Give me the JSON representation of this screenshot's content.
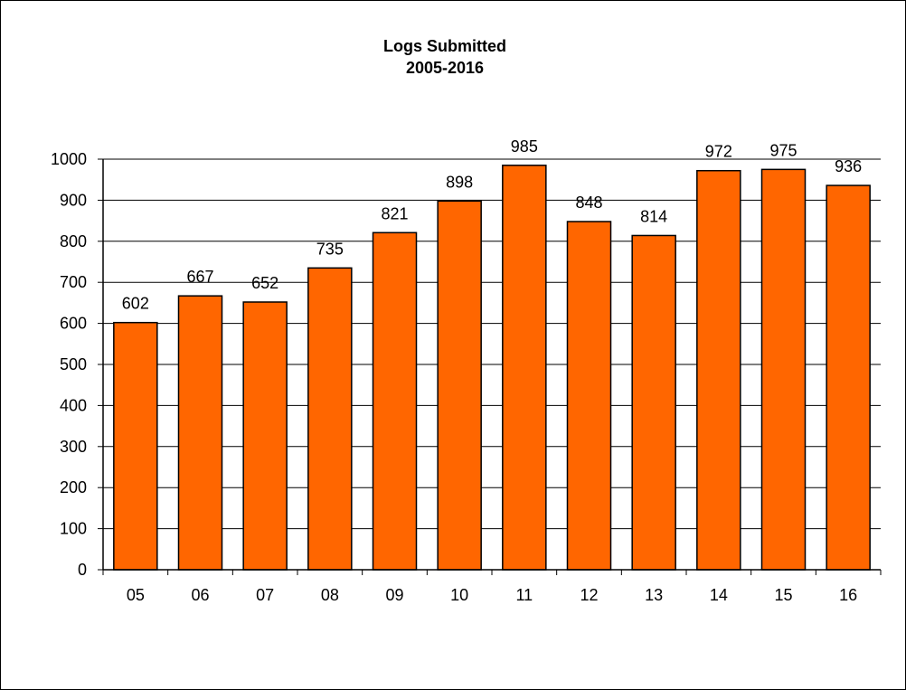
{
  "chart_data": {
    "type": "bar",
    "title": "Logs Submitted",
    "subtitle": "2005-2016",
    "xlabel": "",
    "ylabel": "",
    "categories": [
      "05",
      "06",
      "07",
      "08",
      "09",
      "10",
      "11",
      "12",
      "13",
      "14",
      "15",
      "16"
    ],
    "values": [
      602,
      667,
      652,
      735,
      821,
      898,
      985,
      848,
      814,
      972,
      975,
      936
    ],
    "ylim": [
      0,
      1000
    ],
    "yticks": [
      "0",
      "100",
      "200",
      "300",
      "400",
      "500",
      "600",
      "700",
      "800",
      "900",
      "1000"
    ],
    "grid": true,
    "legend": "none",
    "data_labels": true,
    "colors": {
      "bar_fill": "#FF6600",
      "bar_stroke": "#000000",
      "grid": "#000000",
      "axis": "#000000"
    }
  }
}
